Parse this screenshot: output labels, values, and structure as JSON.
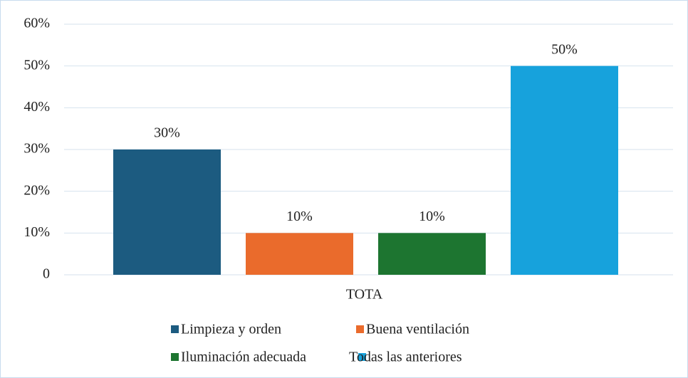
{
  "chart_data": {
    "type": "bar",
    "categories": [
      "TOTA"
    ],
    "series": [
      {
        "name": "Limpieza y orden",
        "color": "#1c5b80",
        "values": [
          30
        ],
        "value_labels": [
          "30%"
        ]
      },
      {
        "name": "Buena ventilación",
        "color": "#ea6b2c",
        "values": [
          10
        ],
        "value_labels": [
          "10%"
        ]
      },
      {
        "name": "Iluminación adecuada",
        "color": "#1d7530",
        "values": [
          10
        ],
        "value_labels": [
          "10%"
        ]
      },
      {
        "name": "Todas las anteriores",
        "color": "#17a2dc",
        "values": [
          50
        ],
        "value_labels": [
          "50%"
        ]
      }
    ],
    "ylim": [
      0,
      60
    ],
    "yticks": [
      0,
      {
        "value": 10,
        "label": "10%"
      },
      {
        "value": 20,
        "label": "20%"
      },
      {
        "value": 30,
        "label": "30%"
      },
      {
        "value": 40,
        "label": "40%"
      },
      {
        "value": 50,
        "label": "50%"
      },
      {
        "value": 60,
        "label": "60%"
      }
    ],
    "grid": true,
    "legend": "bottom"
  }
}
